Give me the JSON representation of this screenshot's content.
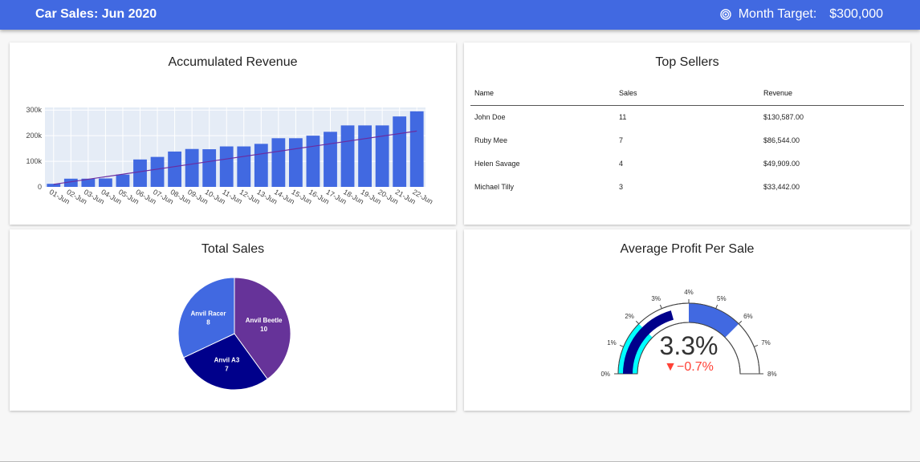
{
  "header": {
    "title": "Car Sales: Jun 2020",
    "target_label": "Month Target:",
    "target_value": "$300,000",
    "target_icon": "target-icon"
  },
  "revenue_card": {
    "title": "Accumulated Revenue",
    "chart_data": {
      "type": "bar",
      "title": "Accumulated Revenue",
      "categories": [
        "01-Jun",
        "02-Jun",
        "03-Jun",
        "04-Jun",
        "05-Jun",
        "06-Jun",
        "07-Jun",
        "08-Jun",
        "09-Jun",
        "10-Jun",
        "11-Jun",
        "12-Jun",
        "13-Jun",
        "14-Jun",
        "15-Jun",
        "16-Jun",
        "17-Jun",
        "18-Jun",
        "19-Jun",
        "20-Jun",
        "21-Jun",
        "22-Jun"
      ],
      "values": [
        12000,
        32000,
        32000,
        33000,
        48000,
        107000,
        117000,
        138000,
        148000,
        147000,
        158000,
        158000,
        168000,
        190000,
        190000,
        200000,
        215000,
        240000,
        240000,
        240000,
        275000,
        295000
      ],
      "trend": {
        "start": 10000,
        "end": 218000
      },
      "ylim": [
        0,
        310000
      ],
      "yticks": [
        0,
        100000,
        200000,
        300000
      ],
      "ytick_labels": [
        "0",
        "100k",
        "200k",
        "300k"
      ],
      "bar_color": "#4169e1",
      "trend_color": "#6a2ca0",
      "plot_bg": "#e5ecf6"
    }
  },
  "sellers_card": {
    "title": "Top Sellers",
    "columns": [
      "Name",
      "Sales",
      "Revenue"
    ],
    "rows": [
      [
        "John Doe",
        "11",
        "$130,587.00"
      ],
      [
        "Ruby Mee",
        "7",
        "$86,544.00"
      ],
      [
        "Helen Savage",
        "4",
        "$49,909.00"
      ],
      [
        "Michael Tilly",
        "3",
        "$33,442.00"
      ]
    ]
  },
  "pie_card": {
    "title": "Total Sales",
    "chart_data": {
      "type": "pie",
      "title": "Total Sales",
      "labels": [
        "Anvil Beetle",
        "Anvil A3",
        "Anvil Racer"
      ],
      "values": [
        10,
        7,
        8
      ],
      "colors": [
        "#663399",
        "#00008b",
        "#4169e1"
      ]
    }
  },
  "gauge_card": {
    "title": "Average Profit Per Sale",
    "value_text": "3.3%",
    "delta_text": "▼−0.7%",
    "chart_data": {
      "type": "gauge",
      "range": [
        0,
        8
      ],
      "value": 3.3,
      "reference": 4.0,
      "delta": -0.7,
      "steps": [
        {
          "range": [
            0,
            2
          ],
          "color": "#00ffff"
        },
        {
          "range": [
            4,
            6
          ],
          "color": "#4169e1"
        }
      ],
      "bar_color": "#00008b",
      "ticks": [
        0,
        1,
        2,
        3,
        4,
        5,
        6,
        7,
        8
      ],
      "tick_labels": [
        "0%",
        "1%",
        "2%",
        "3%",
        "4%",
        "5%",
        "6%",
        "7%",
        "8%"
      ],
      "delta_color": "#ff4136"
    }
  }
}
